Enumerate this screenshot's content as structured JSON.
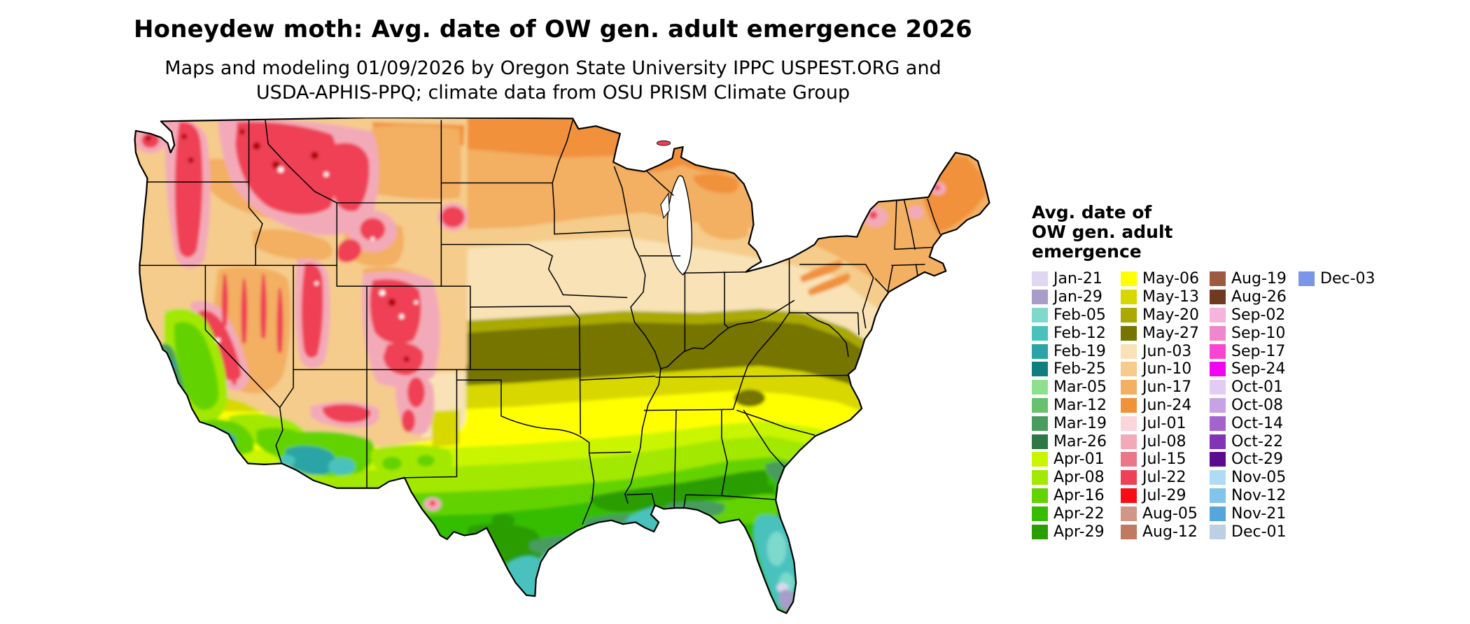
{
  "title": "Honeydew moth: Avg. date of OW gen. adult emergence 2026",
  "subtitle": {
    "line1": "Maps and modeling 01/09/2026 by Oregon State University IPPC USPEST.ORG and",
    "line2": "USDA-APHIS-PPQ; climate data from OSU PRISM Climate Group"
  },
  "legend": {
    "title_lines": [
      "Avg. date of",
      "OW gen. adult",
      "emergence"
    ],
    "columns": [
      {
        "entries": [
          {
            "label": "Jan-21",
            "color": "#ded7ef"
          },
          {
            "label": "Jan-29",
            "color": "#a89cc8"
          },
          {
            "label": "Feb-05",
            "color": "#7cd9cc"
          },
          {
            "label": "Feb-12",
            "color": "#49c2bd"
          },
          {
            "label": "Feb-19",
            "color": "#2aa4a6"
          },
          {
            "label": "Feb-25",
            "color": "#0f7e81"
          },
          {
            "label": "Mar-05",
            "color": "#8ee08e"
          },
          {
            "label": "Mar-12",
            "color": "#69c06e"
          },
          {
            "label": "Mar-19",
            "color": "#4a9c5e"
          },
          {
            "label": "Mar-26",
            "color": "#2e7747"
          },
          {
            "label": "Apr-01",
            "color": "#c9f500"
          },
          {
            "label": "Apr-08",
            "color": "#a3e800"
          },
          {
            "label": "Apr-16",
            "color": "#64d300"
          },
          {
            "label": "Apr-22",
            "color": "#36bd00"
          },
          {
            "label": "Apr-29",
            "color": "#2a9d00"
          }
        ]
      },
      {
        "entries": [
          {
            "label": "May-06",
            "color": "#ffff00"
          },
          {
            "label": "May-13",
            "color": "#d8d800"
          },
          {
            "label": "May-20",
            "color": "#a9a900"
          },
          {
            "label": "May-27",
            "color": "#757500"
          },
          {
            "label": "Jun-03",
            "color": "#f8e2b6"
          },
          {
            "label": "Jun-10",
            "color": "#f5cc8b"
          },
          {
            "label": "J un-17",
            "color": "#f3af62"
          },
          {
            "label": "Jun-24",
            "color": "#f1913a"
          },
          {
            "label": "Jul-01",
            "color": "#f8d6dc"
          },
          {
            "label": "Jul-08",
            "color": "#f3aab8"
          },
          {
            "label": "Jul-15",
            "color": "#eb7687"
          },
          {
            "label": "Jul-22",
            "color": "#ef4155"
          },
          {
            "label": "Jul-29",
            "color": "#f80d15"
          },
          {
            "label": "Aug-05",
            "color": "#d29687"
          },
          {
            "label": "Aug-12",
            "color": "#c07a62"
          }
        ]
      },
      {
        "entries": [
          {
            "label": "Aug-19",
            "color": "#9d5a40"
          },
          {
            "label": "Aug-26",
            "color": "#6e3a22"
          },
          {
            "label": "Sep-02",
            "color": "#f4b4db"
          },
          {
            "label": "Sep-10",
            "color": "#f086cb"
          },
          {
            "label": "Sep-17",
            "color": "#fa45d1"
          },
          {
            "label": "Sep-24",
            "color": "#ef05ef"
          },
          {
            "label": "Oct-01",
            "color": "#e3ccf4"
          },
          {
            "label": "Oct-08",
            "color": "#c9a2e6"
          },
          {
            "label": "Oct-14",
            "color": "#a464cd"
          },
          {
            "label": "Oct-22",
            "color": "#8135b4"
          },
          {
            "label": "Oct-29",
            "color": "#5c0a8e"
          },
          {
            "label": "Nov-05",
            "color": "#afdcf3"
          },
          {
            "label": "Nov-12",
            "color": "#83c4ea"
          },
          {
            "label": "Nov-21",
            "color": "#56a6da"
          },
          {
            "label": "Dec-01",
            "color": "#bccfe3"
          }
        ]
      },
      {
        "entries": [
          {
            "label": "Dec-03",
            "color": "#7a96e8"
          }
        ]
      }
    ]
  }
}
